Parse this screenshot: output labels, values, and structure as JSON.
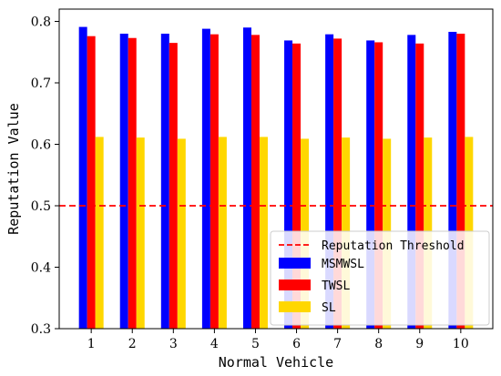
{
  "chart_data": {
    "type": "bar",
    "xlabel": "Normal Vehicle",
    "ylabel": "Reputation Value",
    "categories": [
      "1",
      "2",
      "3",
      "4",
      "5",
      "6",
      "7",
      "8",
      "9",
      "10"
    ],
    "ylim": [
      0.3,
      0.82
    ],
    "yticks": [
      "0.3",
      "0.4",
      "0.5",
      "0.6",
      "0.7",
      "0.8"
    ],
    "series": [
      {
        "name": "MSMWSL",
        "color": "#0000ff",
        "values": [
          0.791,
          0.78,
          0.78,
          0.788,
          0.79,
          0.769,
          0.779,
          0.769,
          0.778,
          0.783
        ]
      },
      {
        "name": "TWSL",
        "color": "#ff0000",
        "values": [
          0.776,
          0.773,
          0.765,
          0.779,
          0.778,
          0.764,
          0.772,
          0.766,
          0.764,
          0.78
        ]
      },
      {
        "name": "SL",
        "color": "#ffd700",
        "values": [
          0.612,
          0.611,
          0.609,
          0.612,
          0.612,
          0.609,
          0.611,
          0.609,
          0.611,
          0.612
        ]
      }
    ],
    "threshold": {
      "name": "Reputation Threshold",
      "value": 0.5,
      "color": "#ff0000"
    },
    "grid": false,
    "legend": "lower-right"
  }
}
